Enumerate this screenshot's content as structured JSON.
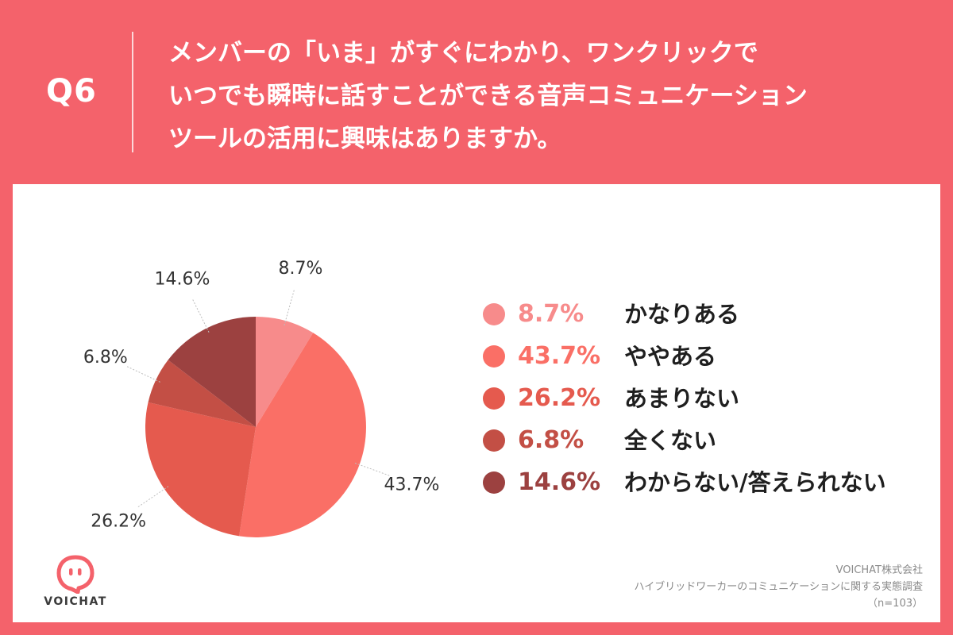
{
  "question": {
    "number": "Q6",
    "lines": [
      "メンバーの「いま」がすぐにわかり、ワンクリックで",
      "いつでも瞬時に話すことができる音声コミュニケーション",
      "ツールの活用に興味はありますか。"
    ]
  },
  "chart_data": {
    "type": "pie",
    "start_angle_deg": 0,
    "direction": "clockwise",
    "slices": [
      {
        "label": "かなりある",
        "value": 8.7,
        "display": "8.7%",
        "color": "#f78b8b"
      },
      {
        "label": "ややある",
        "value": 43.7,
        "display": "43.7%",
        "color": "#fa6f66"
      },
      {
        "label": "あまりない",
        "value": 26.2,
        "display": "26.2%",
        "color": "#e55a4e"
      },
      {
        "label": "全くない",
        "value": 6.8,
        "display": "6.8%",
        "color": "#c34f45"
      },
      {
        "label": "わからない/答えられない",
        "value": 14.6,
        "display": "14.6%",
        "color": "#9c4140"
      }
    ],
    "legend_placement": "right"
  },
  "logo": {
    "text": "VOICHAT",
    "color": "#f4626b"
  },
  "source": {
    "company": "VOICHAT株式会社",
    "survey": "ハイブリッドワーカーのコミュニケーションに関する実態調査",
    "sample": "（n=103）"
  }
}
